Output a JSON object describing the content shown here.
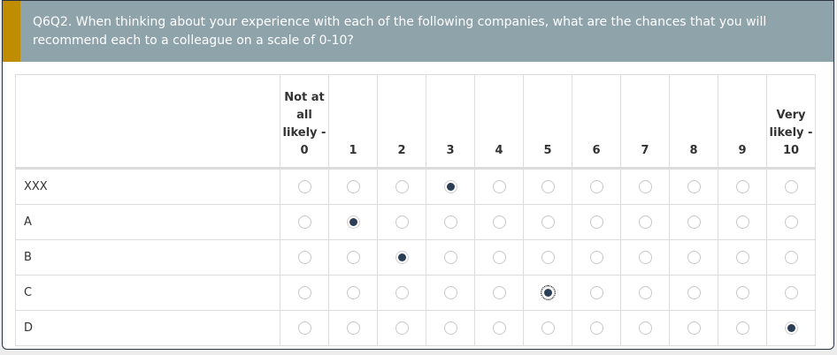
{
  "question": {
    "text": "Q6Q2. When thinking about your experience with each of the following companies, what are the chances that you will recommend each to a colleague on a scale of 0-10?"
  },
  "columns": [
    "Not at all likely - 0",
    "1",
    "2",
    "3",
    "4",
    "5",
    "6",
    "7",
    "8",
    "9",
    "Very likely - 10"
  ],
  "rows": [
    {
      "label": "XXX",
      "selected": 3
    },
    {
      "label": "A",
      "selected": 1
    },
    {
      "label": "B",
      "selected": 2
    },
    {
      "label": "C",
      "selected": 5,
      "focused": true
    },
    {
      "label": "D",
      "selected": 10
    }
  ],
  "colors": {
    "header_bg": "#8fa3ab",
    "accent": "#c08c00",
    "selected": "#2c3e55"
  }
}
